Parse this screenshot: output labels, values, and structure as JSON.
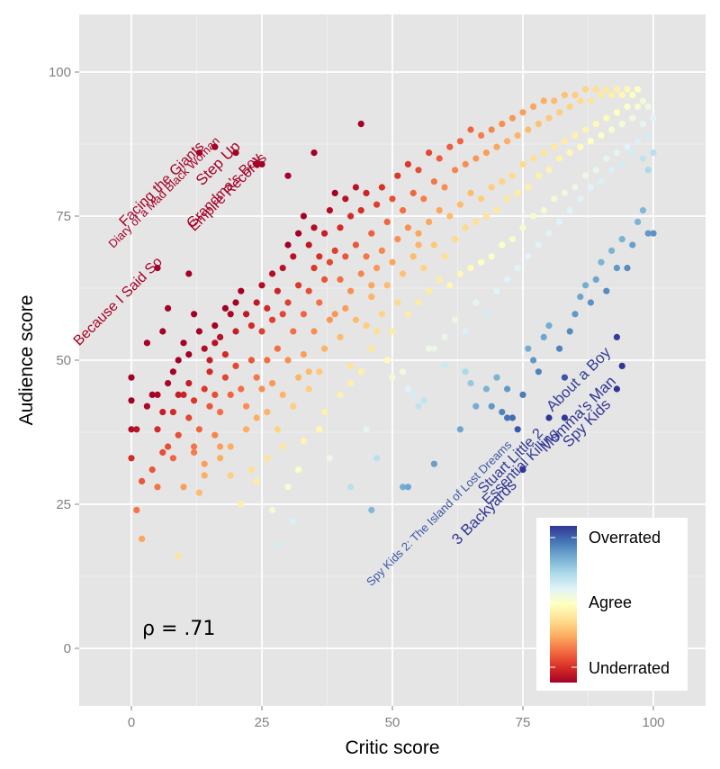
{
  "chart_data": {
    "type": "scatter",
    "xlabel": "Critic score",
    "ylabel": "Audience score",
    "xlim": [
      -10,
      110
    ],
    "ylim": [
      -10,
      110
    ],
    "x_ticks": [
      0,
      25,
      50,
      75,
      100
    ],
    "y_ticks": [
      0,
      25,
      50,
      75,
      100
    ],
    "x_tick_labels": [
      "0",
      "25",
      "50",
      "75",
      "100"
    ],
    "y_tick_labels": [
      "0",
      "25",
      "50",
      "75",
      "100"
    ],
    "grid": true,
    "annotation": "ρ = .71",
    "legend": {
      "position": "bottom-right",
      "labels": [
        "Overrated",
        "Agree",
        "Underrated"
      ],
      "colors": [
        "#313695",
        "#4575b4",
        "#74add1",
        "#abd9e9",
        "#e0f3f8",
        "#ffffbf",
        "#fee090",
        "#fdae61",
        "#f46d43",
        "#d73027",
        "#a50026"
      ]
    },
    "labeled_points": [
      {
        "label": "Diary of a Mad Black Woman",
        "x": 16,
        "y": 87,
        "side": "underrated"
      },
      {
        "label": "Facing the Giants",
        "x": 13,
        "y": 86,
        "side": "underrated"
      },
      {
        "label": "Step Up",
        "x": 20,
        "y": 86,
        "side": "underrated"
      },
      {
        "label": "Grandma's Boy",
        "x": 24,
        "y": 84,
        "side": "underrated"
      },
      {
        "label": "Empire Records",
        "x": 25,
        "y": 84,
        "side": "underrated"
      },
      {
        "label": "Because I Said So",
        "x": 5,
        "y": 66,
        "side": "underrated"
      },
      {
        "label": "About a Boy",
        "x": 93,
        "y": 54,
        "side": "overrated"
      },
      {
        "label": "Momma's Man",
        "x": 94,
        "y": 49,
        "side": "overrated"
      },
      {
        "label": "Spy Kids",
        "x": 93,
        "y": 45,
        "side": "overrated"
      },
      {
        "label": "Essential Killing",
        "x": 83,
        "y": 40,
        "side": "overrated"
      },
      {
        "label": "Stuart Little 2",
        "x": 80,
        "y": 40,
        "side": "overrated"
      },
      {
        "label": "3 Backyards",
        "x": 75,
        "y": 31,
        "side": "overrated"
      },
      {
        "label": "Spy Kids 2: The Island of Lost Dreams",
        "x": 74,
        "y": 38,
        "side": "overrated"
      }
    ],
    "points": [
      [
        0,
        47
      ],
      [
        0,
        43
      ],
      [
        0,
        38
      ],
      [
        0,
        33
      ],
      [
        1,
        24
      ],
      [
        1,
        38
      ],
      [
        2,
        19
      ],
      [
        2,
        29
      ],
      [
        3,
        42
      ],
      [
        3,
        53
      ],
      [
        4,
        44
      ],
      [
        4,
        31
      ],
      [
        5,
        44
      ],
      [
        5,
        38
      ],
      [
        6,
        34
      ],
      [
        6,
        55
      ],
      [
        7,
        59
      ],
      [
        7,
        46
      ],
      [
        8,
        41
      ],
      [
        8,
        48
      ],
      [
        9,
        50
      ],
      [
        9,
        37
      ],
      [
        9,
        16
      ],
      [
        10,
        53
      ],
      [
        10,
        44
      ],
      [
        10,
        28
      ],
      [
        11,
        46
      ],
      [
        11,
        51
      ],
      [
        11,
        65
      ],
      [
        12,
        43
      ],
      [
        12,
        35
      ],
      [
        12,
        58
      ],
      [
        13,
        55
      ],
      [
        13,
        38
      ],
      [
        13,
        27
      ],
      [
        14,
        52
      ],
      [
        14,
        45
      ],
      [
        14,
        32
      ],
      [
        15,
        50
      ],
      [
        15,
        48
      ],
      [
        15,
        42
      ],
      [
        16,
        56
      ],
      [
        16,
        53
      ],
      [
        16,
        44
      ],
      [
        17,
        54
      ],
      [
        17,
        41
      ],
      [
        17,
        35
      ],
      [
        18,
        47
      ],
      [
        18,
        51
      ],
      [
        18,
        59
      ],
      [
        19,
        58
      ],
      [
        19,
        44
      ],
      [
        19,
        35
      ],
      [
        20,
        60
      ],
      [
        20,
        55
      ],
      [
        20,
        49
      ],
      [
        21,
        45
      ],
      [
        21,
        62
      ],
      [
        22,
        58
      ],
      [
        22,
        42
      ],
      [
        22,
        38
      ],
      [
        23,
        56
      ],
      [
        23,
        50
      ],
      [
        23,
        31
      ],
      [
        24,
        60
      ],
      [
        24,
        47
      ],
      [
        24,
        40
      ],
      [
        25,
        63
      ],
      [
        25,
        55
      ],
      [
        25,
        45
      ],
      [
        26,
        59
      ],
      [
        26,
        41
      ],
      [
        26,
        50
      ],
      [
        27,
        65
      ],
      [
        27,
        57
      ],
      [
        27,
        46
      ],
      [
        28,
        62
      ],
      [
        28,
        52
      ],
      [
        28,
        38
      ],
      [
        29,
        66
      ],
      [
        29,
        58
      ],
      [
        29,
        44
      ],
      [
        30,
        70
      ],
      [
        30,
        60
      ],
      [
        30,
        50
      ],
      [
        31,
        68
      ],
      [
        31,
        55
      ],
      [
        31,
        42
      ],
      [
        32,
        72
      ],
      [
        32,
        63
      ],
      [
        32,
        47
      ],
      [
        33,
        75
      ],
      [
        33,
        58
      ],
      [
        33,
        51
      ],
      [
        34,
        70
      ],
      [
        34,
        62
      ],
      [
        34,
        45
      ],
      [
        35,
        73
      ],
      [
        35,
        66
      ],
      [
        35,
        55
      ],
      [
        36,
        68
      ],
      [
        36,
        60
      ],
      [
        36,
        48
      ],
      [
        37,
        72
      ],
      [
        37,
        64
      ],
      [
        37,
        52
      ],
      [
        38,
        76
      ],
      [
        38,
        67
      ],
      [
        38,
        57
      ],
      [
        39,
        79
      ],
      [
        39,
        69
      ],
      [
        39,
        58
      ],
      [
        40,
        73
      ],
      [
        40,
        64
      ],
      [
        40,
        54
      ],
      [
        41,
        78
      ],
      [
        41,
        68
      ],
      [
        41,
        59
      ],
      [
        42,
        75
      ],
      [
        42,
        62
      ],
      [
        42,
        49
      ],
      [
        43,
        80
      ],
      [
        43,
        70
      ],
      [
        43,
        57
      ],
      [
        44,
        76
      ],
      [
        44,
        65
      ],
      [
        44,
        48
      ],
      [
        45,
        79
      ],
      [
        45,
        68
      ],
      [
        45,
        56
      ],
      [
        46,
        72
      ],
      [
        46,
        61
      ],
      [
        46,
        52
      ],
      [
        47,
        77
      ],
      [
        47,
        66
      ],
      [
        47,
        55
      ],
      [
        48,
        80
      ],
      [
        48,
        69
      ],
      [
        48,
        58
      ],
      [
        49,
        74
      ],
      [
        49,
        63
      ],
      [
        49,
        50
      ],
      [
        50,
        78
      ],
      [
        50,
        67
      ],
      [
        50,
        55
      ],
      [
        51,
        82
      ],
      [
        51,
        71
      ],
      [
        51,
        60
      ],
      [
        52,
        76
      ],
      [
        52,
        65
      ],
      [
        52,
        48
      ],
      [
        53,
        84
      ],
      [
        53,
        73
      ],
      [
        53,
        58
      ],
      [
        54,
        79
      ],
      [
        54,
        68
      ],
      [
        54,
        44
      ],
      [
        55,
        83
      ],
      [
        55,
        72
      ],
      [
        55,
        60
      ],
      [
        56,
        78
      ],
      [
        56,
        66
      ],
      [
        56,
        43
      ],
      [
        57,
        86
      ],
      [
        57,
        74
      ],
      [
        57,
        62
      ],
      [
        58,
        81
      ],
      [
        58,
        70
      ],
      [
        58,
        52
      ],
      [
        59,
        85
      ],
      [
        59,
        76
      ],
      [
        59,
        64
      ],
      [
        60,
        80
      ],
      [
        60,
        68
      ],
      [
        60,
        49
      ],
      [
        61,
        87
      ],
      [
        61,
        75
      ],
      [
        61,
        63
      ],
      [
        62,
        83
      ],
      [
        62,
        71
      ],
      [
        62,
        57
      ],
      [
        63,
        88
      ],
      [
        63,
        77
      ],
      [
        63,
        65
      ],
      [
        64,
        84
      ],
      [
        64,
        73
      ],
      [
        64,
        55
      ],
      [
        65,
        90
      ],
      [
        65,
        79
      ],
      [
        65,
        66
      ],
      [
        66,
        85
      ],
      [
        66,
        74
      ],
      [
        66,
        60
      ],
      [
        67,
        89
      ],
      [
        67,
        78
      ],
      [
        67,
        67
      ],
      [
        68,
        86
      ],
      [
        68,
        75
      ],
      [
        68,
        58
      ],
      [
        69,
        90
      ],
      [
        69,
        80
      ],
      [
        69,
        68
      ],
      [
        70,
        87
      ],
      [
        70,
        76
      ],
      [
        70,
        62
      ],
      [
        71,
        91
      ],
      [
        71,
        81
      ],
      [
        71,
        70
      ],
      [
        72,
        88
      ],
      [
        72,
        78
      ],
      [
        72,
        64
      ],
      [
        73,
        92
      ],
      [
        73,
        82
      ],
      [
        73,
        71
      ],
      [
        74,
        89
      ],
      [
        74,
        79
      ],
      [
        74,
        66
      ],
      [
        75,
        93
      ],
      [
        75,
        84
      ],
      [
        75,
        73
      ],
      [
        76,
        90
      ],
      [
        76,
        80
      ],
      [
        76,
        68
      ],
      [
        77,
        94
      ],
      [
        77,
        85
      ],
      [
        77,
        75
      ],
      [
        78,
        91
      ],
      [
        78,
        82
      ],
      [
        78,
        70
      ],
      [
        79,
        95
      ],
      [
        79,
        86
      ],
      [
        79,
        76
      ],
      [
        80,
        92
      ],
      [
        80,
        83
      ],
      [
        80,
        72
      ],
      [
        81,
        95
      ],
      [
        81,
        87
      ],
      [
        81,
        78
      ],
      [
        82,
        93
      ],
      [
        82,
        85
      ],
      [
        82,
        74
      ],
      [
        83,
        96
      ],
      [
        83,
        88
      ],
      [
        83,
        79
      ],
      [
        84,
        94
      ],
      [
        84,
        86
      ],
      [
        84,
        76
      ],
      [
        85,
        96
      ],
      [
        85,
        89
      ],
      [
        85,
        80
      ],
      [
        86,
        95
      ],
      [
        86,
        87
      ],
      [
        86,
        78
      ],
      [
        87,
        97
      ],
      [
        87,
        90
      ],
      [
        87,
        82
      ],
      [
        88,
        95
      ],
      [
        88,
        88
      ],
      [
        88,
        80
      ],
      [
        89,
        97
      ],
      [
        89,
        91
      ],
      [
        89,
        83
      ],
      [
        90,
        96
      ],
      [
        90,
        89
      ],
      [
        90,
        81
      ],
      [
        91,
        97
      ],
      [
        91,
        92
      ],
      [
        91,
        85
      ],
      [
        92,
        96
      ],
      [
        92,
        90
      ],
      [
        92,
        83
      ],
      [
        93,
        97
      ],
      [
        93,
        93
      ],
      [
        93,
        86
      ],
      [
        94,
        96
      ],
      [
        94,
        91
      ],
      [
        94,
        84
      ],
      [
        95,
        97
      ],
      [
        95,
        94
      ],
      [
        95,
        87
      ],
      [
        96,
        96
      ],
      [
        96,
        92
      ],
      [
        96,
        86
      ],
      [
        97,
        97
      ],
      [
        97,
        94
      ],
      [
        97,
        88
      ],
      [
        98,
        95
      ],
      [
        98,
        91
      ],
      [
        98,
        85
      ],
      [
        99,
        94
      ],
      [
        99,
        89
      ],
      [
        99,
        83
      ],
      [
        100,
        92
      ],
      [
        100,
        86
      ],
      [
        100,
        72
      ],
      [
        44,
        91
      ],
      [
        35,
        86
      ],
      [
        30,
        82
      ],
      [
        55,
        70
      ],
      [
        46,
        63
      ],
      [
        60,
        54
      ],
      [
        57,
        52
      ],
      [
        64,
        48
      ],
      [
        50,
        47
      ],
      [
        53,
        45
      ],
      [
        55,
        42
      ],
      [
        45,
        38
      ],
      [
        47,
        33
      ],
      [
        42,
        28
      ],
      [
        46,
        24
      ],
      [
        52,
        28
      ],
      [
        53,
        28
      ],
      [
        58,
        32
      ],
      [
        63,
        38
      ],
      [
        65,
        46
      ],
      [
        66,
        42
      ],
      [
        68,
        45
      ],
      [
        70,
        47
      ],
      [
        71,
        41
      ],
      [
        72,
        45
      ],
      [
        76,
        52
      ],
      [
        77,
        50
      ],
      [
        78,
        48
      ],
      [
        79,
        54
      ],
      [
        80,
        56
      ],
      [
        82,
        52
      ],
      [
        83,
        47
      ],
      [
        84,
        55
      ],
      [
        85,
        58
      ],
      [
        86,
        61
      ],
      [
        87,
        63
      ],
      [
        88,
        60
      ],
      [
        89,
        64
      ],
      [
        90,
        67
      ],
      [
        91,
        62
      ],
      [
        92,
        69
      ],
      [
        93,
        66
      ],
      [
        94,
        71
      ],
      [
        95,
        66
      ],
      [
        96,
        70
      ],
      [
        97,
        74
      ],
      [
        98,
        76
      ],
      [
        99,
        72
      ],
      [
        75,
        44
      ],
      [
        73,
        40
      ],
      [
        72,
        40
      ],
      [
        69,
        42
      ],
      [
        28,
        18
      ],
      [
        31,
        22
      ],
      [
        27,
        24
      ],
      [
        32,
        31
      ],
      [
        29,
        35
      ],
      [
        36,
        38
      ],
      [
        38,
        33
      ],
      [
        40,
        44
      ],
      [
        42,
        46
      ],
      [
        37,
        41
      ],
      [
        34,
        48
      ],
      [
        33,
        36
      ],
      [
        30,
        28
      ],
      [
        26,
        33
      ],
      [
        24,
        29
      ],
      [
        21,
        25
      ],
      [
        19,
        30
      ],
      [
        17,
        33
      ],
      [
        16,
        37
      ],
      [
        14,
        30
      ],
      [
        12,
        34
      ],
      [
        11,
        40
      ],
      [
        9,
        44
      ],
      [
        8,
        33
      ],
      [
        7,
        35
      ],
      [
        6,
        41
      ],
      [
        5,
        28
      ]
    ]
  }
}
